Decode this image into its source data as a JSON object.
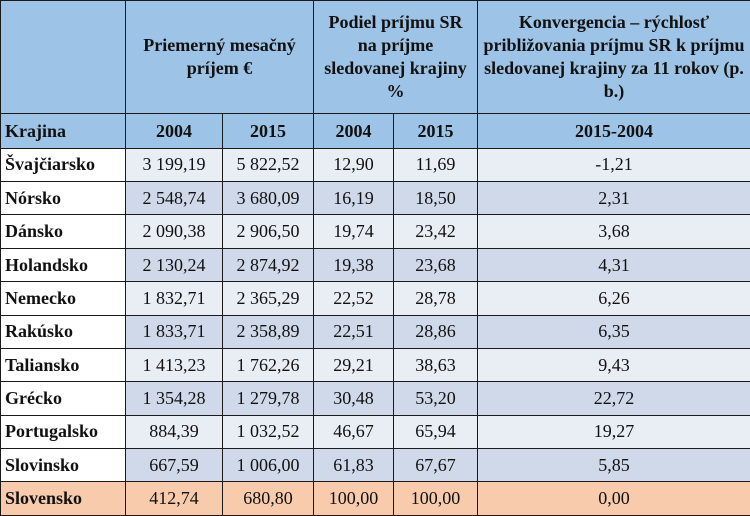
{
  "header": {
    "income_group": "Priemerný mesačný príjem €",
    "share_group": "Podiel príjmu SR na príjme sledovanej krajiny %",
    "convergence_group": "Konvergencia – rýchlosť približovania príjmu SR k príjmu sledovanej krajiny za 11 rokov (p. b.)",
    "country": "Krajina",
    "income_2004": "2004",
    "income_2015": "2015",
    "share_2004": "2004",
    "share_2015": "2015",
    "convergence_period": "2015-2004"
  },
  "rows": [
    {
      "country": "Švajčiarsko",
      "inc2004": "3 199,19",
      "inc2015": "5 822,52",
      "sh2004": "12,90",
      "sh2015": "11,69",
      "conv": "-1,21"
    },
    {
      "country": "Nórsko",
      "inc2004": "2 548,74",
      "inc2015": "3 680,09",
      "sh2004": "16,19",
      "sh2015": "18,50",
      "conv": "2,31"
    },
    {
      "country": "Dánsko",
      "inc2004": "2 090,38",
      "inc2015": "2 906,50",
      "sh2004": "19,74",
      "sh2015": "23,42",
      "conv": "3,68"
    },
    {
      "country": "Holandsko",
      "inc2004": "2 130,24",
      "inc2015": "2 874,92",
      "sh2004": "19,38",
      "sh2015": "23,68",
      "conv": "4,31"
    },
    {
      "country": "Nemecko",
      "inc2004": "1 832,71",
      "inc2015": "2 365,29",
      "sh2004": "22,52",
      "sh2015": "28,78",
      "conv": "6,26"
    },
    {
      "country": "Rakúsko",
      "inc2004": "1 833,71",
      "inc2015": "2 358,89",
      "sh2004": "22,51",
      "sh2015": "28,86",
      "conv": "6,35"
    },
    {
      "country": "Taliansko",
      "inc2004": "1 413,23",
      "inc2015": "1 762,26",
      "sh2004": "29,21",
      "sh2015": "38,63",
      "conv": "9,43"
    },
    {
      "country": "Grécko",
      "inc2004": "1 354,28",
      "inc2015": "1 279,78",
      "sh2004": "30,48",
      "sh2015": "53,20",
      "conv": "22,72"
    },
    {
      "country": "Portugalsko",
      "inc2004": "884,39",
      "inc2015": "1 032,52",
      "sh2004": "46,67",
      "sh2015": "65,94",
      "conv": "19,27"
    },
    {
      "country": "Slovinsko",
      "inc2004": "667,59",
      "inc2015": "1 006,00",
      "sh2004": "61,83",
      "sh2015": "67,67",
      "conv": "5,85"
    },
    {
      "country": "Slovensko",
      "inc2004": "412,74",
      "inc2015": "680,80",
      "sh2004": "100,00",
      "sh2015": "100,00",
      "conv": "0,00"
    }
  ],
  "colors": {
    "header": "#9dc3e6",
    "row_light": "#e9edf4",
    "row_dark": "#cfd9ea",
    "highlight": "#f8cbad"
  }
}
